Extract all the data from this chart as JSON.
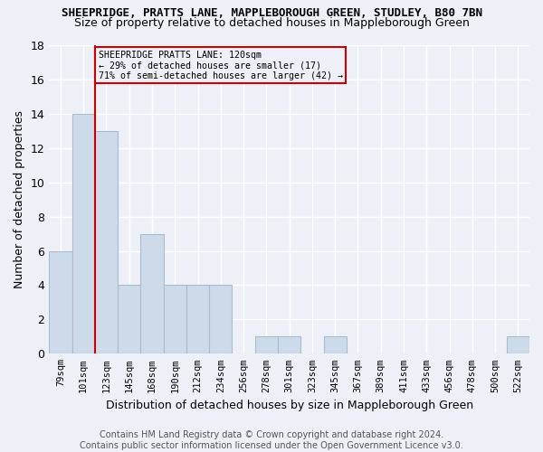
{
  "title1": "SHEEPRIDGE, PRATTS LANE, MAPPLEBOROUGH GREEN, STUDLEY, B80 7BN",
  "title2": "Size of property relative to detached houses in Mappleborough Green",
  "xlabel": "Distribution of detached houses by size in Mappleborough Green",
  "ylabel": "Number of detached properties",
  "footnote": "Contains HM Land Registry data © Crown copyright and database right 2024.\nContains public sector information licensed under the Open Government Licence v3.0.",
  "categories": [
    "79sqm",
    "101sqm",
    "123sqm",
    "145sqm",
    "168sqm",
    "190sqm",
    "212sqm",
    "234sqm",
    "256sqm",
    "278sqm",
    "301sqm",
    "323sqm",
    "345sqm",
    "367sqm",
    "389sqm",
    "411sqm",
    "433sqm",
    "456sqm",
    "478sqm",
    "500sqm",
    "522sqm"
  ],
  "values": [
    6,
    14,
    13,
    4,
    7,
    4,
    4,
    4,
    0,
    1,
    1,
    0,
    1,
    0,
    0,
    0,
    0,
    0,
    0,
    0,
    1
  ],
  "bar_color": "#ccdaea",
  "bar_edge_color": "#aabccc",
  "bg_color": "#edf1f7",
  "grid_color": "#ffffff",
  "ref_line_color": "#cc0000",
  "annotation_line1": "SHEEPRIDGE PRATTS LANE: 120sqm",
  "annotation_line2": "← 29% of detached houses are smaller (17)",
  "annotation_line3": "71% of semi-detached houses are larger (42) →",
  "annotation_box_color": "#cc0000",
  "ylim": [
    0,
    18
  ],
  "yticks": [
    0,
    2,
    4,
    6,
    8,
    10,
    12,
    14,
    16,
    18
  ],
  "ref_line_index": 1.5,
  "title1_fontsize": 9,
  "title2_fontsize": 9,
  "footnote_fontsize": 7
}
